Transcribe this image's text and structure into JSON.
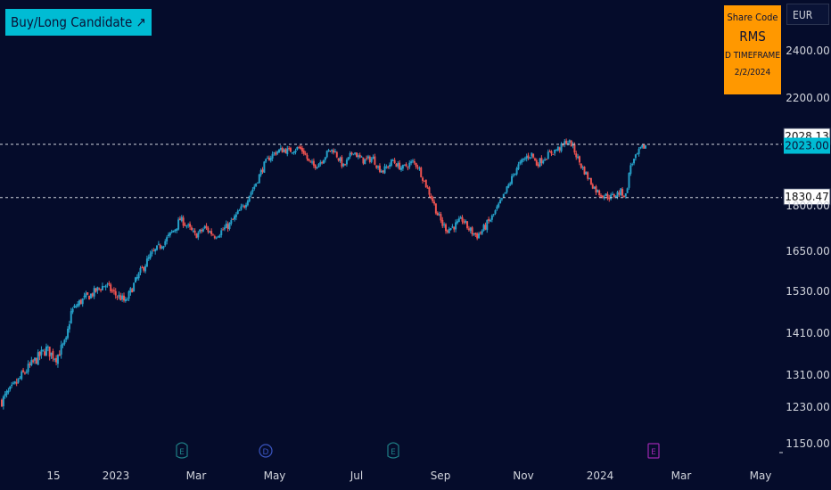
{
  "badge": {
    "label": "Buy/Long Candidate ↗"
  },
  "info_box": {
    "header": "Share Code",
    "code": "RMS",
    "timeframe": "D TIMEFRAME",
    "date": "2/2/2024"
  },
  "currency": "EUR",
  "colors": {
    "background": "#050c2b",
    "up_candle": "#26a0c8",
    "down_candle": "#ef5350",
    "badge": "#00bcd4",
    "info_box": "#ff9800",
    "event_earnings": "#1f7f86",
    "event_dividend": "#3a55c0",
    "event_future": "#9c27b0"
  },
  "chart_data": {
    "type": "candlestick",
    "y_axis": {
      "ticks": [
        1150,
        1230,
        1310,
        1410,
        1530,
        1650,
        1800,
        2200,
        2400
      ],
      "tick_labels": [
        "1150.00",
        "1230.00",
        "1310.00",
        "1410.00",
        "1530.00",
        "1650.00",
        "1800.00",
        "2200.00",
        "2400.00"
      ]
    },
    "x_axis": {
      "ticks": [
        "15",
        "2023",
        "Mar",
        "May",
        "Jul",
        "Sep",
        "Nov",
        "2024",
        "Mar",
        "May"
      ]
    },
    "price_levels": [
      {
        "label": "2028.13",
        "value": 2028.13,
        "style": "dashed"
      },
      {
        "label": "1830.47",
        "value": 1830.47,
        "style": "dashed"
      }
    ],
    "last_price": {
      "label": "2023.00",
      "value": 2023.0
    },
    "events": [
      {
        "letter": "E",
        "type": "earnings",
        "x_label": "Mar"
      },
      {
        "letter": "D",
        "type": "dividend",
        "x_label": "May"
      },
      {
        "letter": "E",
        "type": "earnings",
        "x_label": "Jul"
      },
      {
        "letter": "E",
        "type": "future",
        "x_label": "2024"
      }
    ],
    "trend_closes": [
      1245,
      1262,
      1275,
      1290,
      1308,
      1322,
      1335,
      1348,
      1360,
      1372,
      1360,
      1352,
      1372,
      1390,
      1470,
      1488,
      1502,
      1512,
      1520,
      1531,
      1542,
      1550,
      1534,
      1520,
      1512,
      1498,
      1530,
      1560,
      1588,
      1612,
      1635,
      1652,
      1668,
      1684,
      1705,
      1725,
      1755,
      1742,
      1722,
      1702,
      1712,
      1728,
      1714,
      1702,
      1712,
      1725,
      1738,
      1760,
      1782,
      1802,
      1842,
      1872,
      1912,
      1952,
      1978,
      1995,
      2005,
      2008,
      2003,
      2010,
      2015,
      2000,
      1962,
      1948,
      1958,
      1978,
      2002,
      2008,
      1976,
      1945,
      1972,
      2006,
      1980,
      1968,
      1972,
      1976,
      1942,
      1930,
      1948,
      1968,
      1948,
      1940,
      1952,
      1962,
      1948,
      1905,
      1862,
      1820,
      1772,
      1738,
      1722,
      1730,
      1740,
      1755,
      1730,
      1712,
      1702,
      1718,
      1740,
      1762,
      1790,
      1822,
      1862,
      1902,
      1942,
      1962,
      1982,
      1992,
      1955,
      1970,
      1985,
      1998,
      2008,
      2018,
      2040,
      2030,
      1988,
      1948,
      1918,
      1885,
      1858,
      1842,
      1838,
      1832,
      1842,
      1852,
      1838,
      1952,
      1978,
      2010,
      2023
    ]
  }
}
